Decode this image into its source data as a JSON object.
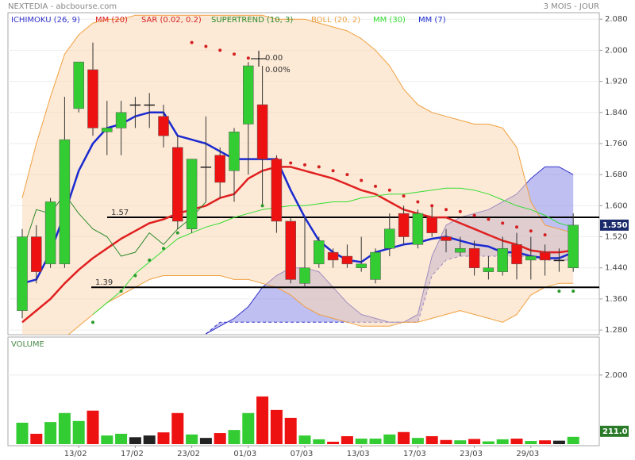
{
  "chart_data": [
    {
      "type": "candlestick",
      "title": "NEXTEDIA - abcbourse.com",
      "subtitle": "3 MOIS - JOUR",
      "categories": [
        null,
        null,
        null,
        null,
        "13/02",
        null,
        null,
        null,
        "17/02",
        null,
        null,
        null,
        "23/02",
        null,
        null,
        null,
        "01/03",
        null,
        null,
        null,
        "07/03",
        null,
        null,
        null,
        "13/03",
        null,
        null,
        null,
        "17/03",
        null,
        null,
        null,
        "23/03",
        null,
        null,
        null,
        "29/03",
        null,
        null,
        null
      ],
      "open": [
        1.33,
        1.52,
        1.45,
        1.45,
        1.85,
        1.95,
        1.79,
        1.8,
        1.86,
        1.86,
        1.83,
        1.75,
        1.54,
        1.7,
        1.73,
        1.69,
        1.81,
        1.86,
        1.72,
        1.56,
        1.4,
        1.45,
        1.48,
        1.47,
        1.44,
        1.41,
        1.49,
        1.58,
        1.5,
        1.57,
        1.52,
        1.48,
        1.49,
        1.43,
        1.43,
        1.5,
        1.46,
        1.48,
        1.46,
        1.44
      ],
      "high": [
        1.54,
        1.55,
        1.62,
        1.88,
        1.97,
        2.02,
        1.87,
        1.87,
        1.88,
        1.89,
        1.86,
        1.78,
        1.72,
        1.83,
        1.75,
        1.8,
        1.97,
        1.96,
        1.73,
        1.57,
        1.57,
        1.52,
        1.49,
        1.5,
        1.52,
        1.49,
        1.58,
        1.6,
        1.59,
        1.6,
        1.54,
        1.52,
        1.51,
        1.47,
        1.52,
        1.53,
        1.52,
        1.5,
        1.49,
        1.58
      ],
      "low": [
        1.31,
        1.4,
        1.44,
        1.44,
        1.84,
        1.78,
        1.73,
        1.73,
        1.8,
        1.8,
        1.75,
        1.54,
        1.53,
        1.61,
        1.62,
        1.61,
        1.68,
        1.6,
        1.53,
        1.4,
        1.39,
        1.44,
        1.44,
        1.44,
        1.43,
        1.4,
        1.47,
        1.5,
        1.49,
        1.52,
        1.48,
        1.47,
        1.42,
        1.41,
        1.42,
        1.41,
        1.41,
        1.42,
        1.43,
        1.43
      ],
      "close": [
        1.52,
        1.43,
        1.61,
        1.77,
        1.97,
        1.8,
        1.8,
        1.84,
        1.86,
        1.86,
        1.78,
        1.56,
        1.72,
        1.7,
        1.66,
        1.79,
        1.96,
        1.72,
        1.56,
        1.41,
        1.44,
        1.51,
        1.46,
        1.45,
        1.45,
        1.48,
        1.54,
        1.52,
        1.58,
        1.53,
        1.51,
        1.49,
        1.44,
        1.44,
        1.49,
        1.45,
        1.47,
        1.46,
        1.46,
        1.55
      ],
      "value_labels": [
        null,
        null,
        null,
        null,
        null,
        null,
        null,
        null,
        null,
        null,
        null,
        null,
        null,
        null,
        null,
        null,
        null,
        null,
        null,
        null,
        null,
        null,
        null,
        null,
        null,
        null,
        null,
        null,
        null,
        null,
        null,
        null,
        null,
        null,
        null,
        null,
        null,
        null,
        null,
        "1.550"
      ],
      "up_color": "#33cc33",
      "down_color": "#ee1111",
      "flat_color": "#222222",
      "ylim": [
        1.268,
        2.109
      ],
      "yticks": [
        {
          "value": 1.28,
          "label": "1.280"
        },
        {
          "value": 1.36,
          "label": "1.360"
        },
        {
          "value": 1.44,
          "label": "1.440"
        },
        {
          "value": 1.52,
          "label": "1.520"
        },
        {
          "value": 1.6,
          "label": "1.600"
        },
        {
          "value": 1.68,
          "label": "1.680"
        },
        {
          "value": 1.76,
          "label": "1.760"
        },
        {
          "value": 1.84,
          "label": "1.840"
        },
        {
          "value": 1.92,
          "label": "1.920"
        },
        {
          "value": 2.0,
          "label": "2.000"
        },
        {
          "value": 2.08,
          "label": "2.080"
        }
      ],
      "grid": true,
      "levels": [
        1.57,
        1.39
      ],
      "annotations": [
        "0.00",
        "0.00%"
      ],
      "series": [
        {
          "name": "ICHIMOKU (26, 9)",
          "kind": "cloud",
          "color": "#3333cc",
          "span_a": [
            null,
            null,
            null,
            null,
            null,
            null,
            null,
            null,
            null,
            null,
            null,
            null,
            null,
            1.27,
            1.29,
            1.31,
            1.34,
            1.39,
            1.42,
            1.44,
            1.44,
            1.43,
            1.39,
            1.35,
            1.32,
            1.31,
            1.3,
            1.3,
            1.32,
            1.47,
            1.55,
            1.57,
            1.58,
            1.59,
            1.61,
            1.63,
            1.67,
            1.7,
            1.7,
            1.68
          ],
          "span_b": [
            null,
            null,
            null,
            null,
            null,
            null,
            null,
            null,
            null,
            null,
            null,
            null,
            null,
            1.27,
            1.3,
            1.3,
            1.3,
            1.3,
            1.3,
            1.3,
            1.3,
            1.3,
            1.3,
            1.3,
            1.3,
            1.3,
            1.3,
            1.3,
            1.3,
            1.42,
            1.46,
            1.47,
            1.47,
            1.47,
            1.47,
            1.47,
            1.47,
            1.46,
            1.46,
            1.46
          ]
        },
        {
          "name": "MM (20)",
          "kind": "line",
          "color": "#e02020",
          "width": 2.5,
          "values": [
            1.3,
            1.33,
            1.36,
            1.4,
            1.435,
            1.465,
            1.49,
            1.515,
            1.535,
            1.555,
            1.565,
            1.58,
            1.59,
            1.6,
            1.62,
            1.63,
            1.67,
            1.69,
            1.7,
            1.7,
            1.69,
            1.68,
            1.67,
            1.655,
            1.64,
            1.63,
            1.61,
            1.59,
            1.58,
            1.57,
            1.57,
            1.555,
            1.54,
            1.525,
            1.51,
            1.5,
            1.485,
            1.48,
            1.48,
            1.485
          ]
        },
        {
          "name": "SAR (0.02, 0.2)",
          "kind": "dots",
          "color": "#d42020",
          "below_color": "#2a9a2a",
          "values": [
            null,
            null,
            null,
            null,
            null,
            1.3,
            null,
            1.38,
            1.42,
            1.46,
            1.49,
            1.53,
            2.02,
            2.01,
            2.0,
            1.99,
            1.98,
            1.6,
            1.72,
            1.71,
            1.705,
            1.7,
            1.69,
            1.68,
            1.665,
            1.65,
            1.64,
            1.625,
            1.61,
            1.6,
            1.59,
            1.585,
            1.575,
            1.565,
            1.555,
            1.545,
            1.535,
            1.525,
            1.38,
            1.38
          ]
        },
        {
          "name": "SUPERTREND (10, 3)",
          "kind": "line",
          "color": "#2a8a2a",
          "width": 1,
          "values": [
            1.48,
            1.59,
            1.58,
            1.63,
            1.58,
            1.54,
            1.52,
            1.47,
            1.48,
            1.53,
            1.5,
            1.54,
            1.57,
            1.61,
            null,
            null,
            null,
            null,
            null,
            null,
            null,
            null,
            null,
            null,
            null,
            null,
            null,
            null,
            null,
            null,
            null,
            null,
            null,
            null,
            null,
            null,
            null,
            null,
            null,
            null
          ]
        },
        {
          "name": "BOLL (20, 2)",
          "kind": "band",
          "color": "#f0a040",
          "upper": [
            1.62,
            1.76,
            1.88,
            1.99,
            2.04,
            2.07,
            2.08,
            2.08,
            2.09,
            2.09,
            2.09,
            2.09,
            2.09,
            2.09,
            2.09,
            2.09,
            2.09,
            2.09,
            2.08,
            2.08,
            2.08,
            2.07,
            2.06,
            2.05,
            2.03,
            2.0,
            1.96,
            1.9,
            1.86,
            1.84,
            1.83,
            1.82,
            1.81,
            1.81,
            1.8,
            1.75,
            1.61,
            1.55,
            1.54,
            1.53
          ],
          "lower": [
            1.24,
            1.24,
            1.25,
            1.26,
            1.29,
            1.32,
            1.35,
            1.37,
            1.39,
            1.41,
            1.42,
            1.42,
            1.42,
            1.42,
            1.42,
            1.41,
            1.41,
            1.4,
            1.39,
            1.37,
            1.34,
            1.32,
            1.31,
            1.3,
            1.29,
            1.29,
            1.29,
            1.3,
            1.3,
            1.31,
            1.32,
            1.33,
            1.32,
            1.31,
            1.3,
            1.32,
            1.37,
            1.39,
            1.4,
            1.4
          ]
        },
        {
          "name": "MM (30)",
          "kind": "line",
          "color": "#33dd33",
          "width": 1,
          "values": [
            null,
            null,
            null,
            null,
            null,
            1.32,
            1.35,
            1.38,
            1.425,
            1.455,
            1.485,
            1.515,
            1.53,
            1.545,
            1.555,
            1.57,
            1.58,
            1.59,
            1.595,
            1.6,
            1.6,
            1.605,
            1.61,
            1.61,
            1.62,
            1.625,
            1.63,
            1.63,
            1.635,
            1.64,
            1.645,
            1.645,
            1.64,
            1.63,
            1.615,
            1.6,
            1.59,
            1.575,
            1.555,
            1.545
          ]
        },
        {
          "name": "MM (7)",
          "kind": "line",
          "color": "#1a2ad0",
          "width": 2.5,
          "values": [
            1.4,
            1.41,
            1.48,
            1.58,
            1.69,
            1.76,
            1.8,
            1.81,
            1.83,
            1.84,
            1.84,
            1.78,
            1.77,
            1.76,
            1.74,
            1.72,
            1.72,
            1.72,
            1.72,
            1.64,
            1.57,
            1.51,
            1.48,
            1.46,
            1.455,
            1.48,
            1.49,
            1.5,
            1.505,
            1.515,
            1.52,
            1.51,
            1.5,
            1.495,
            1.48,
            1.48,
            1.47,
            1.465,
            1.465,
            1.48
          ]
        }
      ]
    },
    {
      "type": "bar",
      "title": "VOLUME",
      "values": [
        620,
        300,
        640,
        900,
        670,
        970,
        250,
        300,
        200,
        250,
        340,
        900,
        280,
        180,
        320,
        410,
        900,
        1380,
        990,
        760,
        250,
        140,
        70,
        230,
        160,
        160,
        280,
        350,
        180,
        230,
        120,
        110,
        150,
        80,
        140,
        160,
        90,
        110,
        100,
        211
      ],
      "value_labels": [
        null,
        null,
        null,
        null,
        null,
        null,
        null,
        null,
        null,
        null,
        null,
        null,
        null,
        null,
        null,
        null,
        null,
        null,
        null,
        null,
        null,
        null,
        null,
        null,
        null,
        null,
        null,
        null,
        null,
        null,
        null,
        null,
        null,
        null,
        null,
        null,
        null,
        null,
        null,
        "211.0"
      ],
      "ylim": [
        0,
        3030
      ],
      "yticks": [
        {
          "value": 2000,
          "label": "2.000"
        }
      ]
    }
  ]
}
